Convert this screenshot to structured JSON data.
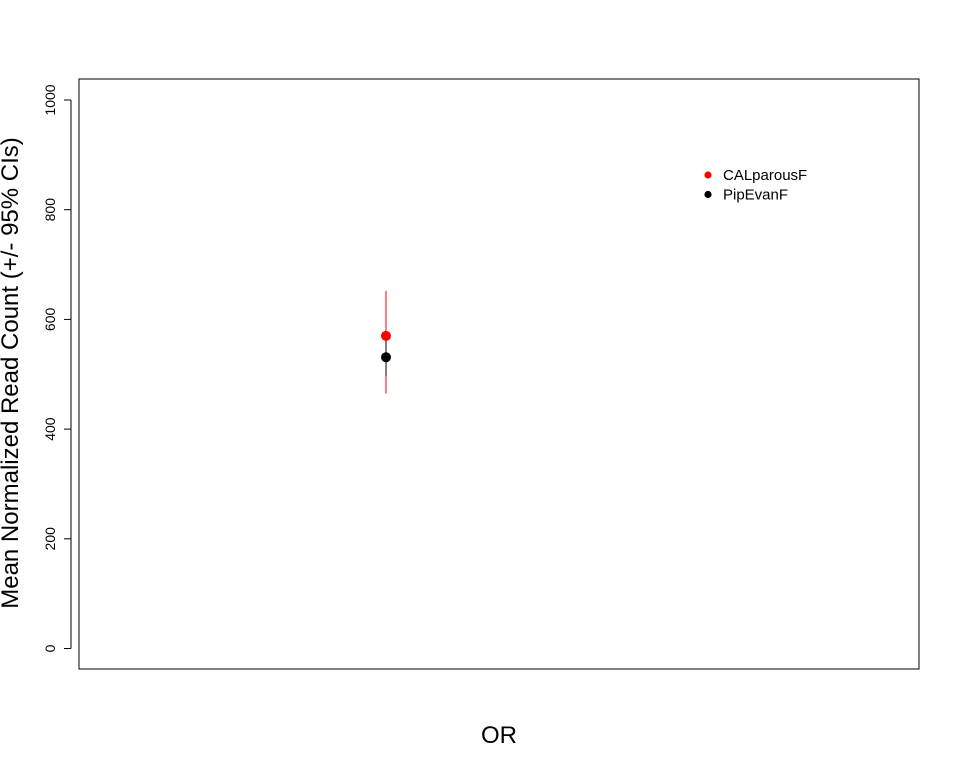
{
  "chart_data": {
    "type": "scatter",
    "categories": [
      "OR"
    ],
    "xlabel": "OR",
    "ylabel": "Mean Normalized Read Count (+/- 95% CIs)",
    "ylim": [
      0,
      1000
    ],
    "yticks": [
      0,
      200,
      400,
      600,
      800,
      1000
    ],
    "grid": false,
    "legend_position": "top-right",
    "series": [
      {
        "name": "CALparousF",
        "color": "#ff0000",
        "values": [
          570
        ],
        "ci_low": [
          465
        ],
        "ci_high": [
          652
        ]
      },
      {
        "name": "PipEvanF",
        "color": "#000000",
        "values": [
          531
        ],
        "ci_low": [
          497
        ],
        "ci_high": [
          568
        ]
      }
    ]
  }
}
